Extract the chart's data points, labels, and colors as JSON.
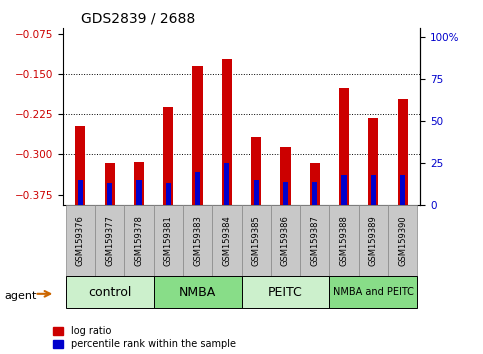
{
  "title": "GDS2839 / 2688",
  "samples": [
    "GSM159376",
    "GSM159377",
    "GSM159378",
    "GSM159381",
    "GSM159383",
    "GSM159384",
    "GSM159385",
    "GSM159386",
    "GSM159387",
    "GSM159388",
    "GSM159389",
    "GSM159390"
  ],
  "log_ratio": [
    -0.247,
    -0.317,
    -0.315,
    -0.212,
    -0.135,
    -0.123,
    -0.267,
    -0.287,
    -0.317,
    -0.177,
    -0.232,
    -0.197
  ],
  "percentile": [
    15,
    13,
    15,
    13,
    20,
    25,
    15,
    14,
    14,
    18,
    18,
    18
  ],
  "groups": [
    {
      "label": "control",
      "indices": [
        0,
        1,
        2
      ],
      "color": "#ccf0cc"
    },
    {
      "label": "NMBA",
      "indices": [
        3,
        4,
        5
      ],
      "color": "#88dd88"
    },
    {
      "label": "PEITC",
      "indices": [
        6,
        7,
        8
      ],
      "color": "#ccf0cc"
    },
    {
      "label": "NMBA and PEITC",
      "indices": [
        9,
        10,
        11
      ],
      "color": "#88dd88"
    }
  ],
  "ylim_left": [
    -0.395,
    -0.065
  ],
  "ylim_right": [
    0,
    105
  ],
  "yticks_left": [
    -0.375,
    -0.3,
    -0.225,
    -0.15,
    -0.075
  ],
  "yticks_right": [
    0,
    25,
    50,
    75,
    100
  ],
  "bar_color_red": "#cc0000",
  "bar_color_blue": "#0000cc",
  "bar_width": 0.35,
  "blue_bar_width": 0.18,
  "title_fontsize": 10,
  "tick_label_color_left": "#cc0000",
  "tick_label_color_right": "#0000cc",
  "dotted_lines": [
    -0.3,
    -0.225,
    -0.15
  ],
  "xlabel_agent": "agent",
  "agent_arrow_color": "#cc6600",
  "legend_labels": [
    "log ratio",
    "percentile rank within the sample"
  ]
}
